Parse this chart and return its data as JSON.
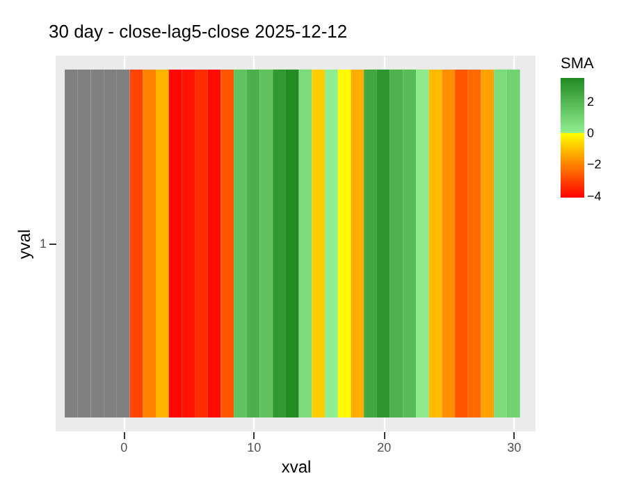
{
  "chart_data": {
    "type": "heatmap",
    "title": "30 day - close-lag5-close  2025-12-12",
    "xlabel": "xval",
    "ylabel": "yval",
    "legend_title": "SMA",
    "x": [
      -4,
      -3,
      -2,
      -1,
      0,
      1,
      2,
      3,
      4,
      5,
      6,
      7,
      8,
      9,
      10,
      11,
      12,
      13,
      14,
      15,
      16,
      17,
      18,
      19,
      20,
      21,
      22,
      23,
      24,
      25,
      26,
      27,
      28,
      29,
      30
    ],
    "y_categories": [
      "1"
    ],
    "cells": [
      [
        null,
        null,
        null,
        null,
        null,
        -3,
        -2,
        -1.2,
        -4,
        -3.8,
        -3.4,
        -3.9,
        -2.7,
        1.5,
        2.2,
        1.6,
        3,
        3.5,
        0.6,
        -0.8,
        0.05,
        -0.1,
        -1.3,
        2.5,
        3.1,
        2.1,
        1.8,
        0.1,
        -1.1,
        -1.8,
        -2.7,
        -2.4,
        -1.5,
        0.6,
        1
      ]
    ],
    "xlim": [
      -5.2,
      31.7
    ],
    "xticks": [
      0,
      10,
      20,
      30
    ],
    "clim": [
      -4.1,
      3.5
    ],
    "cticks": [
      -4,
      -2,
      0,
      2
    ],
    "grid": "x"
  }
}
